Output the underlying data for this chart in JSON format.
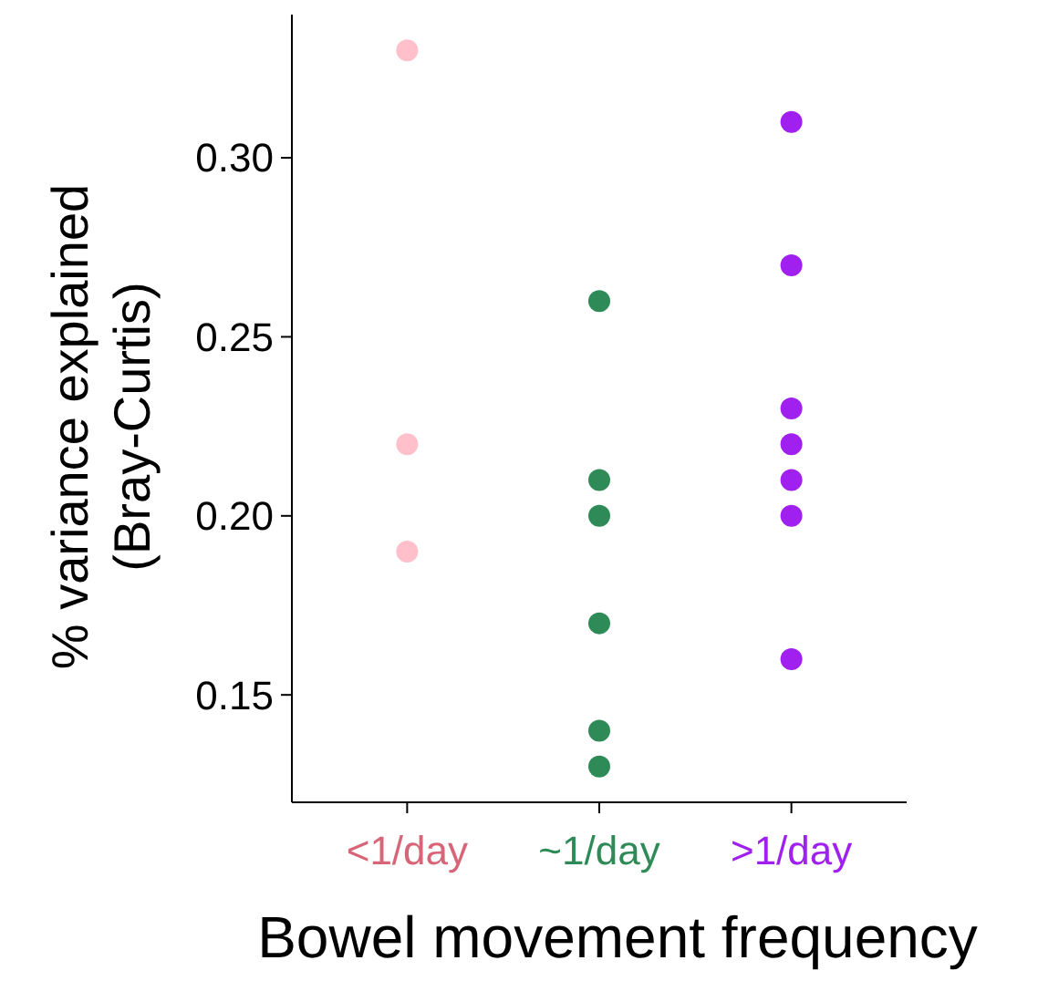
{
  "chart_data": {
    "type": "scatter",
    "xlabel": "Bowel movement frequency",
    "ylabel": "% variance explained\n(Bray-Curtis)",
    "categories": [
      "<1/day",
      "~1/day",
      ">1/day"
    ],
    "series": [
      {
        "color": "#ffc0cb",
        "x": [
          "<1/day",
          "<1/day",
          "<1/day"
        ],
        "values": [
          0.33,
          0.22,
          0.19
        ]
      },
      {
        "color": "#2e8b57",
        "x": [
          "~1/day",
          "~1/day",
          "~1/day",
          "~1/day",
          "~1/day",
          "~1/day"
        ],
        "values": [
          0.26,
          0.21,
          0.2,
          0.17,
          0.14,
          0.13
        ]
      },
      {
        "color": "#a020f0",
        "x": [
          ">1/day",
          ">1/day",
          ">1/day",
          ">1/day",
          ">1/day",
          ">1/day",
          ">1/day"
        ],
        "values": [
          0.31,
          0.27,
          0.23,
          0.22,
          0.21,
          0.2,
          0.16
        ]
      }
    ],
    "ylim": [
      0.12,
      0.34
    ],
    "yticks": [
      {
        "value": 0.15,
        "label": "0.15"
      },
      {
        "value": 0.2,
        "label": "0.20"
      },
      {
        "value": 0.25,
        "label": "0.25"
      },
      {
        "value": 0.3,
        "label": "0.30"
      }
    ],
    "grid": false,
    "marker": "circle"
  }
}
